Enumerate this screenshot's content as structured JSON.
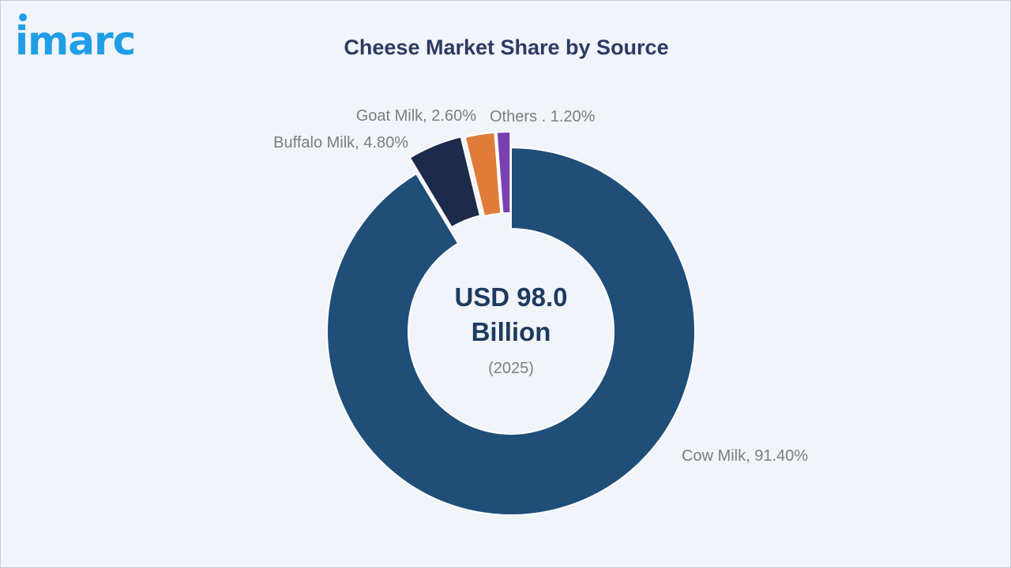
{
  "brand": {
    "logo_text": "imarc"
  },
  "chart_data": {
    "type": "pie",
    "title": "Cheese Market Share by Source",
    "center_text": {
      "line1": "USD 98.0",
      "line2": "Billion",
      "line3": "(2025)"
    },
    "slices": [
      {
        "name": "Cow Milk",
        "value": 91.4,
        "label": "Cow Milk, 91.40%",
        "color": "#1f4e79"
      },
      {
        "name": "Buffalo Milk",
        "value": 4.8,
        "label": "Buffalo Milk, 4.80%",
        "color": "#1c2b4a"
      },
      {
        "name": "Goat Milk",
        "value": 2.6,
        "label": "Goat Milk, 2.60%",
        "color": "#e07b39"
      },
      {
        "name": "Others",
        "value": 1.2,
        "label": "Others . 1.20%",
        "color": "#7a3fb0"
      }
    ]
  }
}
